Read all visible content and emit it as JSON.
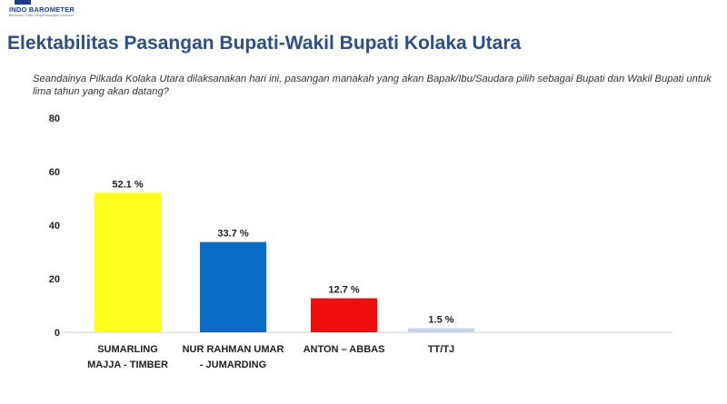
{
  "header": {
    "logo_name": "INDO BAROMETER",
    "logo_tagline": "Barometer Publik Menyeimbangkan Informasi"
  },
  "title": "Elektabilitas Pasangan Bupati-Wakil Bupati Kolaka Utara",
  "question": "Seandainya Pilkada Kolaka Utara dilaksanakan hari ini, pasangan manakah yang akan Bapak/Ibu/Saudara pilih sebagai Bupati dan Wakil Bupati untuk lima tahun yang akan datang?",
  "chart_data": {
    "type": "bar",
    "categories": [
      [
        "SUMARLING",
        "MAJJA - TIMBER"
      ],
      [
        "NUR RAHMAN UMAR",
        "- JUMARDING"
      ],
      [
        "ANTON – ABBAS"
      ],
      [
        "TT/TJ"
      ]
    ],
    "values": [
      52.1,
      33.7,
      12.7,
      1.5
    ],
    "value_labels": [
      "52.1 %",
      "33.7 %",
      "12.7 %",
      "1.5 %"
    ],
    "colors": [
      "#ffff1e",
      "#0a6cc4",
      "#ee0e0e",
      "#c6d5ea"
    ],
    "yticks": [
      "0",
      "20",
      "40",
      "60",
      "80"
    ],
    "ylim": [
      0,
      80
    ],
    "grid": false,
    "legend": "none"
  }
}
